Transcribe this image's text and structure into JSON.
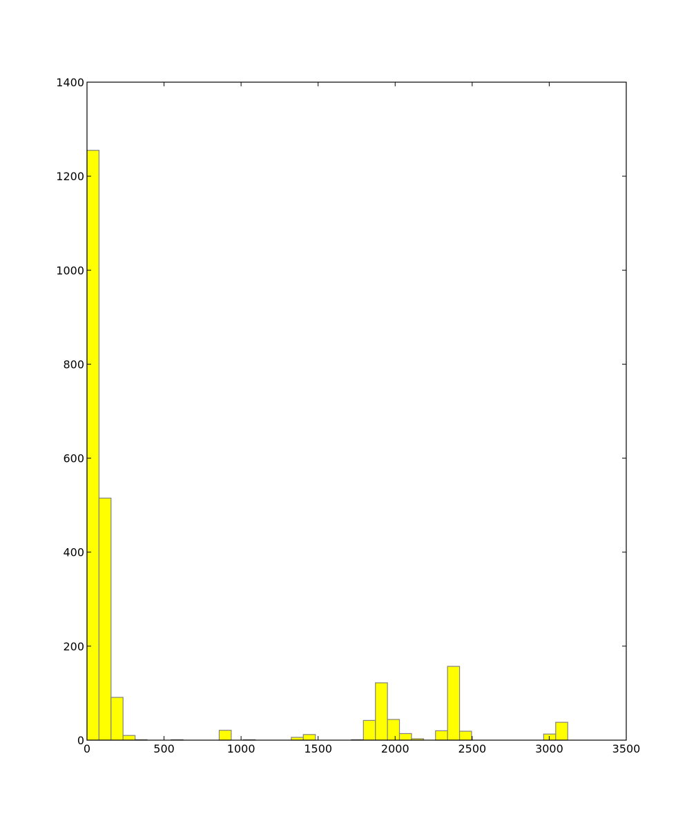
{
  "colors": {
    "bar_fill": "#ffff00",
    "bar_stroke": "#808080",
    "axes": "#000000",
    "background": "#ffffff"
  },
  "chart_data": {
    "type": "bar",
    "title": "",
    "xlabel": "",
    "ylabel": "",
    "xlim": [
      0,
      3500
    ],
    "ylim": [
      0,
      1400
    ],
    "grid": false,
    "legend": "none",
    "xticks": [
      0,
      500,
      1000,
      1500,
      2000,
      2500,
      3000,
      3500
    ],
    "yticks": [
      0,
      200,
      400,
      600,
      800,
      1000,
      1200,
      1400
    ],
    "bin_width": 78,
    "bins": [
      {
        "x0": 0,
        "count": 1255
      },
      {
        "x0": 78,
        "count": 515
      },
      {
        "x0": 156,
        "count": 91
      },
      {
        "x0": 234,
        "count": 10
      },
      {
        "x0": 312,
        "count": 1
      },
      {
        "x0": 546,
        "count": 1
      },
      {
        "x0": 858,
        "count": 21
      },
      {
        "x0": 1014,
        "count": 1
      },
      {
        "x0": 1326,
        "count": 6
      },
      {
        "x0": 1404,
        "count": 12
      },
      {
        "x0": 1716,
        "count": 1
      },
      {
        "x0": 1794,
        "count": 42
      },
      {
        "x0": 1872,
        "count": 122
      },
      {
        "x0": 1950,
        "count": 44
      },
      {
        "x0": 2028,
        "count": 14
      },
      {
        "x0": 2106,
        "count": 3
      },
      {
        "x0": 2262,
        "count": 20
      },
      {
        "x0": 2340,
        "count": 157
      },
      {
        "x0": 2418,
        "count": 19
      },
      {
        "x0": 2964,
        "count": 13
      },
      {
        "x0": 3042,
        "count": 38
      }
    ]
  }
}
